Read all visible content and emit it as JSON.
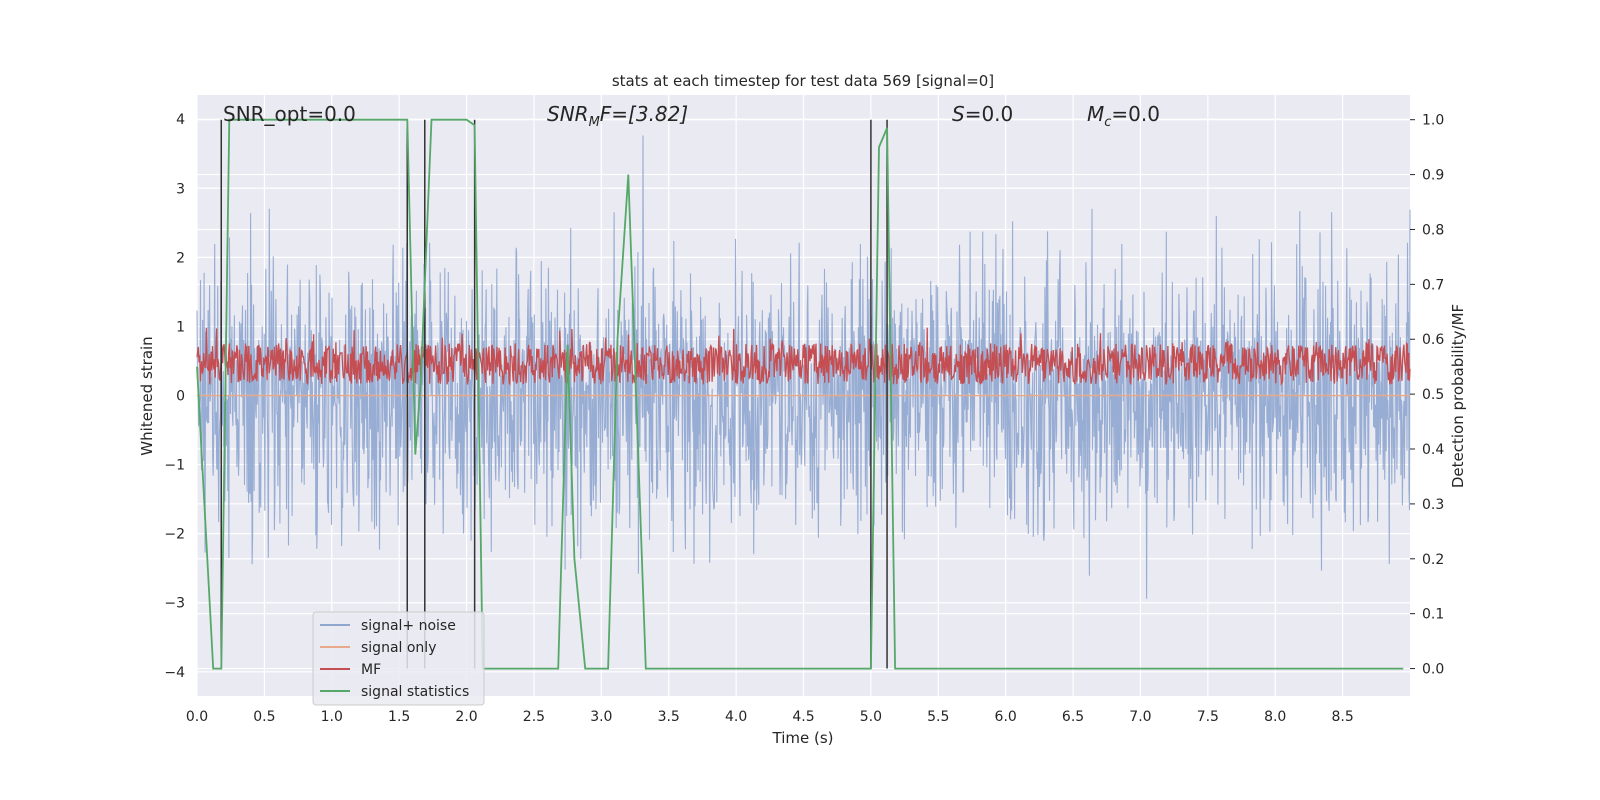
{
  "chart_data": {
    "type": "line",
    "title": "stats at each timestep for test data 569 [signal=0]",
    "xlabel": "Time (s)",
    "ylabel_left": "Whitened strain",
    "ylabel_right": "Detection probability/MF",
    "xlim": [
      0.0,
      9.0
    ],
    "ylim_left": [
      -4.35,
      4.35
    ],
    "ylim_right": [
      -0.05,
      1.045
    ],
    "xticks": [
      "0.0",
      "0.5",
      "1.0",
      "1.5",
      "2.0",
      "2.5",
      "3.0",
      "3.5",
      "4.0",
      "4.5",
      "5.0",
      "5.5",
      "6.0",
      "6.5",
      "7.0",
      "7.5",
      "8.0",
      "8.5"
    ],
    "yticks_left": [
      "4",
      "3",
      "2",
      "1",
      "0",
      "−1",
      "−2",
      "−3",
      "−4"
    ],
    "yticks_right": [
      "1.0",
      "0.9",
      "0.8",
      "0.7",
      "0.6",
      "0.5",
      "0.4",
      "0.3",
      "0.2",
      "0.1",
      "0.0"
    ],
    "grid": true,
    "legend_placement": "lower-left",
    "annotations": {
      "snr_opt": "SNR_opt=0.0",
      "snr_mf_base": "SNR",
      "snr_mf_sub": "M",
      "snr_mf_tail": "F=[3.82]",
      "s_var": "S",
      "s_val": "=0.0",
      "mc_var": "M",
      "mc_sub": "c",
      "mc_val": "=0.0"
    },
    "colors": {
      "noise": "#8fa6cf",
      "signal_only": "#e8a98a",
      "mf": "#c44e52",
      "stats": "#55a868",
      "vlines": "#333333",
      "background": "#eaeaf2"
    },
    "series": [
      {
        "name": "signal+ noise",
        "axis": "left",
        "description": "dense whitened strain, roughly within -3.6 to 4.0"
      },
      {
        "name": "signal only",
        "axis": "left",
        "x": [
          0.0,
          9.0
        ],
        "y": [
          0.0,
          0.0
        ]
      },
      {
        "name": "MF",
        "axis": "right",
        "description": "matched filter output, roughly within 0.5 to 0.62"
      },
      {
        "name": "signal statistics",
        "axis": "right",
        "x": [
          0.0,
          0.12,
          0.18,
          0.24,
          0.3,
          1.56,
          1.62,
          1.66,
          1.74,
          2.0,
          2.06,
          2.12,
          2.3,
          2.68,
          2.75,
          2.8,
          2.88,
          3.05,
          3.12,
          3.2,
          3.33,
          5.0,
          5.06,
          5.12,
          5.18,
          8.95
        ],
        "y": [
          0.55,
          0.0,
          0.0,
          1.0,
          1.0,
          1.0,
          0.39,
          0.52,
          1.0,
          1.0,
          0.99,
          0.0,
          0.0,
          0.0,
          0.59,
          0.2,
          0.0,
          0.0,
          0.6,
          0.9,
          0.0,
          0.0,
          0.95,
          0.985,
          0.0,
          0.0
        ]
      }
    ],
    "vertical_lines": [
      0.18,
      1.56,
      1.69,
      2.06,
      5.0,
      5.12
    ],
    "legend": [
      "signal+ noise",
      "signal only",
      "MF",
      "signal statistics"
    ]
  }
}
